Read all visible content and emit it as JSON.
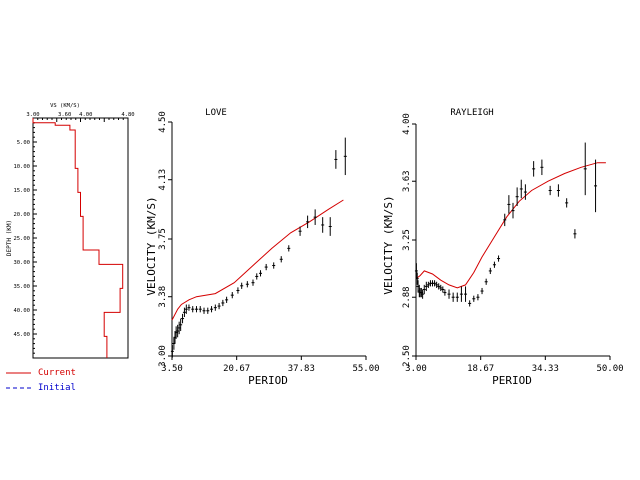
{
  "legend": {
    "current_label": "Current",
    "initial_label": "Initial",
    "current_color": "#d40000",
    "initial_color": "#0000cc"
  },
  "chart_data": [
    {
      "id": "model",
      "type": "line",
      "title": "VS (KM/S)",
      "xlabel": "VS (KM/S)",
      "ylabel": "DEPTH (KM)",
      "xlim": [
        3.0,
        4.8
      ],
      "ylim": [
        0,
        50
      ],
      "y_inverted": true,
      "xticks": [
        "3.00",
        "3.60",
        "4.00",
        "4.80"
      ],
      "yticks": [
        "5.00",
        "10.00",
        "15.00",
        "20.00",
        "25.00",
        "30.00",
        "35.00",
        "40.00",
        "45.00"
      ],
      "series": [
        {
          "name": "Current",
          "color": "#d40000",
          "values": [
            [
              3.0,
              0
            ],
            [
              3.0,
              1
            ],
            [
              3.42,
              1
            ],
            [
              3.42,
              1.5
            ],
            [
              3.7,
              1.5
            ],
            [
              3.7,
              2.5
            ],
            [
              3.8,
              2.5
            ],
            [
              3.8,
              10.5
            ],
            [
              3.85,
              10.5
            ],
            [
              3.85,
              15.5
            ],
            [
              3.9,
              15.5
            ],
            [
              3.9,
              20.5
            ],
            [
              3.95,
              20.5
            ],
            [
              3.95,
              27.5
            ],
            [
              4.25,
              27.5
            ],
            [
              4.25,
              30.5
            ],
            [
              4.7,
              30.5
            ],
            [
              4.7,
              35.5
            ],
            [
              4.65,
              35.5
            ],
            [
              4.65,
              40.5
            ],
            [
              4.35,
              40.5
            ],
            [
              4.35,
              45.5
            ],
            [
              4.4,
              45.5
            ],
            [
              4.4,
              50
            ]
          ]
        }
      ],
      "grid": false
    },
    {
      "id": "love",
      "type": "scatter",
      "title": "LOVE",
      "xlabel": "PERIOD",
      "ylabel": "VELOCITY (KM/S)",
      "xlim": [
        3.5,
        55.0
      ],
      "ylim": [
        3.0,
        4.5
      ],
      "xticks": [
        "3.50",
        "20.67",
        "37.83",
        "55.00"
      ],
      "yticks": [
        "3.00",
        "3.38",
        "3.75",
        "4.13",
        "4.50"
      ],
      "series": [
        {
          "name": "Current",
          "color": "#d40000",
          "values": [
            [
              3.5,
              3.23
            ],
            [
              5,
              3.3
            ],
            [
              6,
              3.33
            ],
            [
              8,
              3.36
            ],
            [
              10,
              3.38
            ],
            [
              15,
              3.4
            ],
            [
              20,
              3.47
            ],
            [
              25,
              3.58
            ],
            [
              30,
              3.69
            ],
            [
              35,
              3.79
            ],
            [
              40,
              3.86
            ],
            [
              45,
              3.94
            ],
            [
              49,
              4.0
            ]
          ]
        },
        {
          "name": "Observed",
          "color": "#000000",
          "values": [
            [
              3.6,
              3.03,
              0.04
            ],
            [
              4.0,
              3.08,
              0.04
            ],
            [
              4.3,
              3.12,
              0.04
            ],
            [
              4.6,
              3.15,
              0.04
            ],
            [
              5.0,
              3.16,
              0.04
            ],
            [
              5.4,
              3.18,
              0.04
            ],
            [
              5.8,
              3.2,
              0.04
            ],
            [
              6.3,
              3.24,
              0.03
            ],
            [
              6.8,
              3.28,
              0.03
            ],
            [
              7.3,
              3.3,
              0.03
            ],
            [
              8.0,
              3.31,
              0.02
            ],
            [
              9.0,
              3.3,
              0.02
            ],
            [
              10.0,
              3.3,
              0.02
            ],
            [
              11.0,
              3.3,
              0.02
            ],
            [
              12.0,
              3.29,
              0.02
            ],
            [
              13.0,
              3.29,
              0.02
            ],
            [
              14.0,
              3.3,
              0.02
            ],
            [
              15.0,
              3.31,
              0.02
            ],
            [
              16.0,
              3.32,
              0.02
            ],
            [
              17.0,
              3.34,
              0.02
            ],
            [
              18.0,
              3.36,
              0.02
            ],
            [
              19.5,
              3.39,
              0.02
            ],
            [
              21.0,
              3.42,
              0.02
            ],
            [
              22.0,
              3.45,
              0.02
            ],
            [
              23.5,
              3.46,
              0.02
            ],
            [
              25.0,
              3.47,
              0.02
            ],
            [
              26.0,
              3.51,
              0.02
            ],
            [
              27.0,
              3.53,
              0.02
            ],
            [
              28.5,
              3.57,
              0.02
            ],
            [
              30.5,
              3.58,
              0.02
            ],
            [
              32.5,
              3.62,
              0.02
            ],
            [
              34.5,
              3.69,
              0.02
            ],
            [
              37.5,
              3.8,
              0.03
            ],
            [
              39.5,
              3.86,
              0.04
            ],
            [
              41.5,
              3.89,
              0.05
            ],
            [
              43.5,
              3.84,
              0.05
            ],
            [
              45.5,
              3.83,
              0.06
            ],
            [
              47.0,
              4.26,
              0.06
            ],
            [
              49.5,
              4.28,
              0.12
            ]
          ]
        }
      ],
      "grid": false
    },
    {
      "id": "rayleigh",
      "type": "scatter",
      "title": "RAYLEIGH",
      "xlabel": "PERIOD",
      "ylabel": "VELOCITY (KM/S)",
      "xlim": [
        3.0,
        50.0
      ],
      "ylim": [
        2.5,
        4.0
      ],
      "xticks": [
        "3.00",
        "18.67",
        "34.33",
        "50.00"
      ],
      "yticks": [
        "2.50",
        "2.88",
        "3.25",
        "3.63",
        "4.00"
      ],
      "series": [
        {
          "name": "Current",
          "color": "#d40000",
          "values": [
            [
              3.0,
              3.0
            ],
            [
              4.0,
              3.02
            ],
            [
              5.0,
              3.05
            ],
            [
              7.0,
              3.03
            ],
            [
              9.0,
              2.99
            ],
            [
              11.0,
              2.96
            ],
            [
              13.0,
              2.94
            ],
            [
              15.0,
              2.96
            ],
            [
              17.0,
              3.04
            ],
            [
              19.0,
              3.14
            ],
            [
              22.0,
              3.27
            ],
            [
              25.0,
              3.4
            ],
            [
              28.0,
              3.5
            ],
            [
              31.0,
              3.57
            ],
            [
              35.0,
              3.63
            ],
            [
              39.0,
              3.68
            ],
            [
              43.0,
              3.72
            ],
            [
              47.0,
              3.75
            ],
            [
              49.0,
              3.75
            ]
          ]
        },
        {
          "name": "Observed",
          "color": "#000000",
          "values": [
            [
              3.1,
              3.05,
              0.05
            ],
            [
              3.3,
              3.0,
              0.04
            ],
            [
              3.5,
              2.95,
              0.04
            ],
            [
              3.8,
              2.92,
              0.04
            ],
            [
              4.0,
              2.91,
              0.03
            ],
            [
              4.3,
              2.91,
              0.03
            ],
            [
              4.6,
              2.9,
              0.03
            ],
            [
              5.0,
              2.93,
              0.03
            ],
            [
              5.5,
              2.95,
              0.03
            ],
            [
              6.0,
              2.96,
              0.02
            ],
            [
              6.5,
              2.97,
              0.02
            ],
            [
              7.0,
              2.97,
              0.02
            ],
            [
              7.5,
              2.97,
              0.02
            ],
            [
              8.0,
              2.96,
              0.02
            ],
            [
              8.5,
              2.95,
              0.02
            ],
            [
              9.0,
              2.94,
              0.02
            ],
            [
              9.5,
              2.93,
              0.02
            ],
            [
              10.0,
              2.91,
              0.02
            ],
            [
              11.0,
              2.9,
              0.03
            ],
            [
              12.0,
              2.88,
              0.03
            ],
            [
              13.0,
              2.88,
              0.03
            ],
            [
              14.0,
              2.9,
              0.05
            ],
            [
              15.0,
              2.9,
              0.05
            ],
            [
              16.0,
              2.84,
              0.02
            ],
            [
              17.0,
              2.87,
              0.02
            ],
            [
              18.0,
              2.88,
              0.02
            ],
            [
              19.0,
              2.92,
              0.02
            ],
            [
              20.0,
              2.98,
              0.02
            ],
            [
              21.0,
              3.05,
              0.02
            ],
            [
              22.0,
              3.09,
              0.02
            ],
            [
              23.0,
              3.13,
              0.02
            ],
            [
              24.5,
              3.38,
              0.04
            ],
            [
              25.5,
              3.48,
              0.06
            ],
            [
              26.5,
              3.44,
              0.05
            ],
            [
              27.5,
              3.53,
              0.06
            ],
            [
              28.5,
              3.58,
              0.06
            ],
            [
              29.5,
              3.56,
              0.05
            ],
            [
              31.5,
              3.71,
              0.05
            ],
            [
              33.5,
              3.72,
              0.05
            ],
            [
              35.5,
              3.57,
              0.03
            ],
            [
              37.5,
              3.57,
              0.04
            ],
            [
              39.5,
              3.49,
              0.03
            ],
            [
              41.5,
              3.29,
              0.03
            ],
            [
              44.0,
              3.71,
              0.17
            ],
            [
              46.5,
              3.6,
              0.17
            ]
          ]
        }
      ],
      "grid": false
    }
  ]
}
